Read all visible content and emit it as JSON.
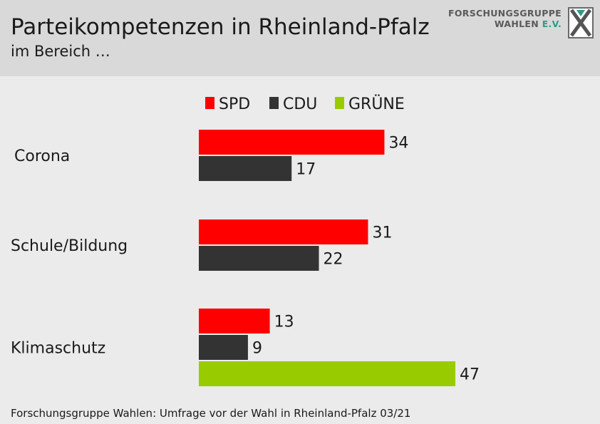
{
  "header": {
    "title": "Parteikompetenzen in Rheinland-Pfalz",
    "subtitle": "im Bereich …"
  },
  "logo": {
    "line1": "FORSCHUNGSGRUPPE",
    "line2_main": "WAHLEN",
    "line2_accent": "E.V.",
    "accent_color": "#2f9a8a",
    "icon": "x-ballot-logo-icon"
  },
  "footer": {
    "source": "Forschungsgruppe Wahlen: Umfrage vor der Wahl in Rheinland-Pfalz 03/21"
  },
  "chart_data": {
    "type": "bar",
    "orientation": "horizontal",
    "title": "Parteikompetenzen in Rheinland-Pfalz",
    "subtitle": "im Bereich …",
    "categories": [
      "Corona",
      "Schule/Bildung",
      "Klimaschutz"
    ],
    "series": [
      {
        "name": "SPD",
        "color": "#ff0000",
        "values": [
          34,
          31,
          13
        ]
      },
      {
        "name": "CDU",
        "color": "#333333",
        "values": [
          17,
          22,
          9
        ]
      },
      {
        "name": "GRÜNE",
        "color": "#99cc00",
        "values": [
          null,
          null,
          47
        ]
      }
    ],
    "legend_position": "top",
    "data_labels": true,
    "grid": false,
    "xlim": [
      0,
      50
    ]
  }
}
